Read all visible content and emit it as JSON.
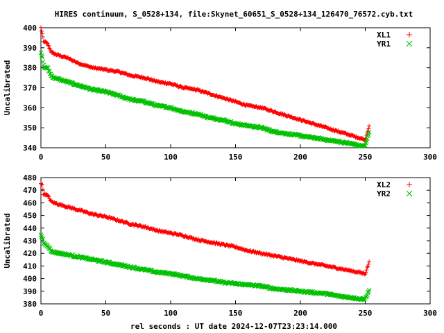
{
  "title": "HIRES continuum, S_0528+134, file:Skynet_60651_S_0528+134_126470_76572.cyb.txt",
  "xlabel": "rel seconds : UT date 2024-12-07T23:23:14.000",
  "colors": {
    "xl": "#ff0000",
    "yr": "#00c000",
    "axis": "#000000"
  },
  "chart_data": [
    {
      "type": "scatter",
      "title": "HIRES continuum, S_0528+134, file:Skynet_60651_S_0528+134_126470_76572.cyb.txt",
      "xlabel": "",
      "ylabel": "Uncalibrated",
      "xlim": [
        0,
        300
      ],
      "ylim": [
        340,
        400
      ],
      "xticks": [
        "0",
        "50",
        "100",
        "150",
        "200",
        "250",
        "300"
      ],
      "yticks": [
        "340",
        "350",
        "360",
        "370",
        "380",
        "390",
        "400"
      ],
      "legend_position": "top-right",
      "grid": false,
      "series": [
        {
          "name": "XL1",
          "marker": "+",
          "color": "#ff0000",
          "x": [
            0,
            1,
            2,
            3,
            5,
            8,
            10,
            20,
            30,
            40,
            50,
            60,
            70,
            80,
            90,
            100,
            110,
            120,
            130,
            140,
            150,
            160,
            170,
            180,
            190,
            200,
            210,
            220,
            230,
            240,
            245,
            250,
            253
          ],
          "y": [
            400,
            397,
            393,
            393,
            392,
            388,
            387,
            385,
            382,
            380,
            379,
            378,
            376,
            375,
            373,
            372,
            370,
            369,
            367,
            365,
            363,
            361,
            360,
            358,
            356,
            354,
            352,
            350,
            348,
            346,
            345,
            344,
            351
          ]
        },
        {
          "name": "YR1",
          "marker": "x",
          "color": "#00c000",
          "x": [
            0,
            1,
            2,
            3,
            5,
            8,
            10,
            20,
            30,
            40,
            50,
            60,
            70,
            80,
            90,
            100,
            110,
            120,
            130,
            140,
            150,
            160,
            170,
            180,
            190,
            200,
            210,
            220,
            230,
            240,
            245,
            250,
            253
          ],
          "y": [
            387,
            385,
            381,
            380,
            380,
            376,
            375,
            373,
            371,
            369,
            368,
            366,
            364,
            363,
            361,
            360,
            358,
            357,
            355,
            354,
            352,
            351,
            350,
            348,
            347,
            346,
            345,
            344,
            343,
            342,
            341,
            341,
            348
          ]
        }
      ]
    },
    {
      "type": "scatter",
      "title": "",
      "xlabel": "rel seconds : UT date 2024-12-07T23:23:14.000",
      "ylabel": "Uncalibrated",
      "xlim": [
        0,
        300
      ],
      "ylim": [
        380,
        480
      ],
      "xticks": [
        "0",
        "50",
        "100",
        "150",
        "200",
        "250",
        "300"
      ],
      "yticks": [
        "380",
        "390",
        "400",
        "410",
        "420",
        "430",
        "440",
        "450",
        "460",
        "470",
        "480"
      ],
      "legend_position": "top-right",
      "grid": false,
      "series": [
        {
          "name": "XL2",
          "marker": "+",
          "color": "#ff0000",
          "x": [
            0,
            1,
            2,
            3,
            5,
            8,
            10,
            20,
            30,
            40,
            50,
            60,
            70,
            80,
            90,
            100,
            110,
            120,
            130,
            140,
            150,
            160,
            170,
            180,
            190,
            200,
            210,
            220,
            230,
            240,
            245,
            250,
            253
          ],
          "y": [
            476,
            474,
            467,
            467,
            466,
            461,
            460,
            457,
            454,
            451,
            449,
            446,
            443,
            441,
            438,
            436,
            434,
            431,
            429,
            427,
            425,
            422,
            420,
            418,
            416,
            414,
            412,
            410,
            408,
            406,
            405,
            404,
            413
          ]
        },
        {
          "name": "YR2",
          "marker": "x",
          "color": "#00c000",
          "x": [
            0,
            1,
            2,
            3,
            5,
            8,
            10,
            20,
            30,
            40,
            50,
            60,
            70,
            80,
            90,
            100,
            110,
            120,
            130,
            140,
            150,
            160,
            170,
            180,
            190,
            200,
            210,
            220,
            230,
            240,
            245,
            250,
            253
          ],
          "y": [
            435,
            433,
            428,
            427,
            426,
            422,
            421,
            419,
            417,
            415,
            413,
            411,
            409,
            407,
            405,
            404,
            402,
            400,
            399,
            397,
            396,
            395,
            394,
            392,
            391,
            390,
            389,
            388,
            386,
            385,
            384,
            384,
            391
          ]
        }
      ]
    }
  ]
}
